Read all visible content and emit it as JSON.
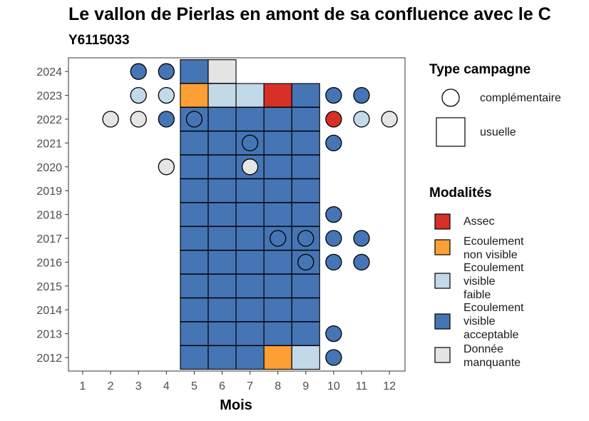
{
  "chart_data": {
    "type": "heatmap",
    "title": "Le vallon de Pierlas en amont de sa confluence avec le C",
    "subtitle": "Y6115033",
    "xlabel": "Mois",
    "ylabel": "",
    "x_ticks": [
      "1",
      "2",
      "3",
      "4",
      "5",
      "6",
      "7",
      "8",
      "9",
      "10",
      "11",
      "12"
    ],
    "y_ticks": [
      "2012",
      "2013",
      "2014",
      "2015",
      "2016",
      "2017",
      "2018",
      "2019",
      "2020",
      "2021",
      "2022",
      "2023",
      "2024"
    ],
    "colors": {
      "Assec": "#d73027",
      "Ecoulement non visible": "#fc9f34",
      "Ecoulement visible faible": "#c2d9e8",
      "Ecoulement visible acceptable": "#4575b4",
      "Donnée manquante": "#e5e5e5"
    },
    "usuelle": [
      {
        "year": 2012,
        "month": 5,
        "mod": "Ecoulement visible acceptable"
      },
      {
        "year": 2012,
        "month": 6,
        "mod": "Ecoulement visible acceptable"
      },
      {
        "year": 2012,
        "month": 7,
        "mod": "Ecoulement visible acceptable"
      },
      {
        "year": 2012,
        "month": 8,
        "mod": "Ecoulement non visible"
      },
      {
        "year": 2012,
        "month": 9,
        "mod": "Ecoulement visible faible"
      },
      {
        "year": 2013,
        "month": 5,
        "mod": "Ecoulement visible acceptable"
      },
      {
        "year": 2013,
        "month": 6,
        "mod": "Ecoulement visible acceptable"
      },
      {
        "year": 2013,
        "month": 7,
        "mod": "Ecoulement visible acceptable"
      },
      {
        "year": 2013,
        "month": 8,
        "mod": "Ecoulement visible acceptable"
      },
      {
        "year": 2013,
        "month": 9,
        "mod": "Ecoulement visible acceptable"
      },
      {
        "year": 2014,
        "month": 5,
        "mod": "Ecoulement visible acceptable"
      },
      {
        "year": 2014,
        "month": 6,
        "mod": "Ecoulement visible acceptable"
      },
      {
        "year": 2014,
        "month": 7,
        "mod": "Ecoulement visible acceptable"
      },
      {
        "year": 2014,
        "month": 8,
        "mod": "Ecoulement visible acceptable"
      },
      {
        "year": 2014,
        "month": 9,
        "mod": "Ecoulement visible acceptable"
      },
      {
        "year": 2015,
        "month": 5,
        "mod": "Ecoulement visible acceptable"
      },
      {
        "year": 2015,
        "month": 6,
        "mod": "Ecoulement visible acceptable"
      },
      {
        "year": 2015,
        "month": 7,
        "mod": "Ecoulement visible acceptable"
      },
      {
        "year": 2015,
        "month": 8,
        "mod": "Ecoulement visible acceptable"
      },
      {
        "year": 2015,
        "month": 9,
        "mod": "Ecoulement visible acceptable"
      },
      {
        "year": 2016,
        "month": 5,
        "mod": "Ecoulement visible acceptable"
      },
      {
        "year": 2016,
        "month": 6,
        "mod": "Ecoulement visible acceptable"
      },
      {
        "year": 2016,
        "month": 7,
        "mod": "Ecoulement visible acceptable"
      },
      {
        "year": 2016,
        "month": 8,
        "mod": "Ecoulement visible acceptable"
      },
      {
        "year": 2016,
        "month": 9,
        "mod": "Ecoulement visible acceptable"
      },
      {
        "year": 2017,
        "month": 5,
        "mod": "Ecoulement visible acceptable"
      },
      {
        "year": 2017,
        "month": 6,
        "mod": "Ecoulement visible acceptable"
      },
      {
        "year": 2017,
        "month": 7,
        "mod": "Ecoulement visible acceptable"
      },
      {
        "year": 2017,
        "month": 8,
        "mod": "Ecoulement visible acceptable"
      },
      {
        "year": 2017,
        "month": 9,
        "mod": "Ecoulement visible acceptable"
      },
      {
        "year": 2018,
        "month": 5,
        "mod": "Ecoulement visible acceptable"
      },
      {
        "year": 2018,
        "month": 6,
        "mod": "Ecoulement visible acceptable"
      },
      {
        "year": 2018,
        "month": 7,
        "mod": "Ecoulement visible acceptable"
      },
      {
        "year": 2018,
        "month": 8,
        "mod": "Ecoulement visible acceptable"
      },
      {
        "year": 2018,
        "month": 9,
        "mod": "Ecoulement visible acceptable"
      },
      {
        "year": 2019,
        "month": 5,
        "mod": "Ecoulement visible acceptable"
      },
      {
        "year": 2019,
        "month": 6,
        "mod": "Ecoulement visible acceptable"
      },
      {
        "year": 2019,
        "month": 7,
        "mod": "Ecoulement visible acceptable"
      },
      {
        "year": 2019,
        "month": 8,
        "mod": "Ecoulement visible acceptable"
      },
      {
        "year": 2019,
        "month": 9,
        "mod": "Ecoulement visible acceptable"
      },
      {
        "year": 2020,
        "month": 5,
        "mod": "Ecoulement visible acceptable"
      },
      {
        "year": 2020,
        "month": 6,
        "mod": "Ecoulement visible acceptable"
      },
      {
        "year": 2020,
        "month": 7,
        "mod": "Ecoulement visible acceptable"
      },
      {
        "year": 2020,
        "month": 8,
        "mod": "Ecoulement visible acceptable"
      },
      {
        "year": 2020,
        "month": 9,
        "mod": "Ecoulement visible acceptable"
      },
      {
        "year": 2021,
        "month": 5,
        "mod": "Ecoulement visible acceptable"
      },
      {
        "year": 2021,
        "month": 6,
        "mod": "Ecoulement visible acceptable"
      },
      {
        "year": 2021,
        "month": 7,
        "mod": "Ecoulement visible acceptable"
      },
      {
        "year": 2021,
        "month": 8,
        "mod": "Ecoulement visible acceptable"
      },
      {
        "year": 2021,
        "month": 9,
        "mod": "Ecoulement visible acceptable"
      },
      {
        "year": 2022,
        "month": 5,
        "mod": "Ecoulement visible acceptable"
      },
      {
        "year": 2022,
        "month": 6,
        "mod": "Ecoulement visible acceptable"
      },
      {
        "year": 2022,
        "month": 7,
        "mod": "Ecoulement visible acceptable"
      },
      {
        "year": 2022,
        "month": 8,
        "mod": "Ecoulement visible acceptable"
      },
      {
        "year": 2022,
        "month": 9,
        "mod": "Ecoulement visible acceptable"
      },
      {
        "year": 2023,
        "month": 5,
        "mod": "Ecoulement non visible"
      },
      {
        "year": 2023,
        "month": 6,
        "mod": "Ecoulement visible faible"
      },
      {
        "year": 2023,
        "month": 7,
        "mod": "Ecoulement visible faible"
      },
      {
        "year": 2023,
        "month": 8,
        "mod": "Assec"
      },
      {
        "year": 2023,
        "month": 9,
        "mod": "Ecoulement visible acceptable"
      },
      {
        "year": 2024,
        "month": 5,
        "mod": "Ecoulement visible acceptable"
      },
      {
        "year": 2024,
        "month": 6,
        "mod": "Donnée manquante"
      }
    ],
    "complementaire": [
      {
        "year": 2024,
        "month": 3,
        "mod": "Ecoulement visible acceptable"
      },
      {
        "year": 2024,
        "month": 4,
        "mod": "Ecoulement visible acceptable"
      },
      {
        "year": 2023,
        "month": 3,
        "mod": "Ecoulement visible faible"
      },
      {
        "year": 2023,
        "month": 4,
        "mod": "Ecoulement visible faible"
      },
      {
        "year": 2023,
        "month": 10,
        "mod": "Ecoulement visible acceptable"
      },
      {
        "year": 2023,
        "month": 11,
        "mod": "Ecoulement visible acceptable"
      },
      {
        "year": 2022,
        "month": 2,
        "mod": "Donnée manquante"
      },
      {
        "year": 2022,
        "month": 3,
        "mod": "Donnée manquante"
      },
      {
        "year": 2022,
        "month": 4,
        "mod": "Ecoulement visible acceptable"
      },
      {
        "year": 2022,
        "month": 5,
        "mod": "Ecoulement visible acceptable"
      },
      {
        "year": 2022,
        "month": 10,
        "mod": "Assec"
      },
      {
        "year": 2022,
        "month": 11,
        "mod": "Ecoulement visible faible"
      },
      {
        "year": 2022,
        "month": 12,
        "mod": "Donnée manquante"
      },
      {
        "year": 2021,
        "month": 7,
        "mod": "Ecoulement visible acceptable"
      },
      {
        "year": 2021,
        "month": 10,
        "mod": "Ecoulement visible acceptable"
      },
      {
        "year": 2020,
        "month": 4,
        "mod": "Donnée manquante"
      },
      {
        "year": 2020,
        "month": 7,
        "mod": "Donnée manquante"
      },
      {
        "year": 2018,
        "month": 10,
        "mod": "Ecoulement visible acceptable"
      },
      {
        "year": 2017,
        "month": 8,
        "mod": "Ecoulement visible acceptable"
      },
      {
        "year": 2017,
        "month": 9,
        "mod": "Ecoulement visible acceptable"
      },
      {
        "year": 2017,
        "month": 10,
        "mod": "Ecoulement visible acceptable"
      },
      {
        "year": 2017,
        "month": 11,
        "mod": "Ecoulement visible acceptable"
      },
      {
        "year": 2016,
        "month": 9,
        "mod": "Ecoulement visible acceptable"
      },
      {
        "year": 2016,
        "month": 10,
        "mod": "Ecoulement visible acceptable"
      },
      {
        "year": 2016,
        "month": 11,
        "mod": "Ecoulement visible acceptable"
      },
      {
        "year": 2013,
        "month": 10,
        "mod": "Ecoulement visible acceptable"
      },
      {
        "year": 2012,
        "month": 10,
        "mod": "Ecoulement visible acceptable"
      }
    ],
    "legend_placement": "right"
  },
  "legend": {
    "type_title": "Type campagne",
    "type_items": [
      "complémentaire",
      "usuelle"
    ],
    "mod_title": "Modalités",
    "mod_items": [
      {
        "label": "Assec",
        "color": "#d73027"
      },
      {
        "label": "Ecoulement\nnon visible",
        "color": "#fc9f34"
      },
      {
        "label": "Ecoulement\nvisible\nfaible",
        "color": "#c2d9e8"
      },
      {
        "label": "Ecoulement\nvisible\nacceptable",
        "color": "#4575b4"
      },
      {
        "label": "Donnée\nmanquante",
        "color": "#e5e5e5"
      }
    ]
  }
}
